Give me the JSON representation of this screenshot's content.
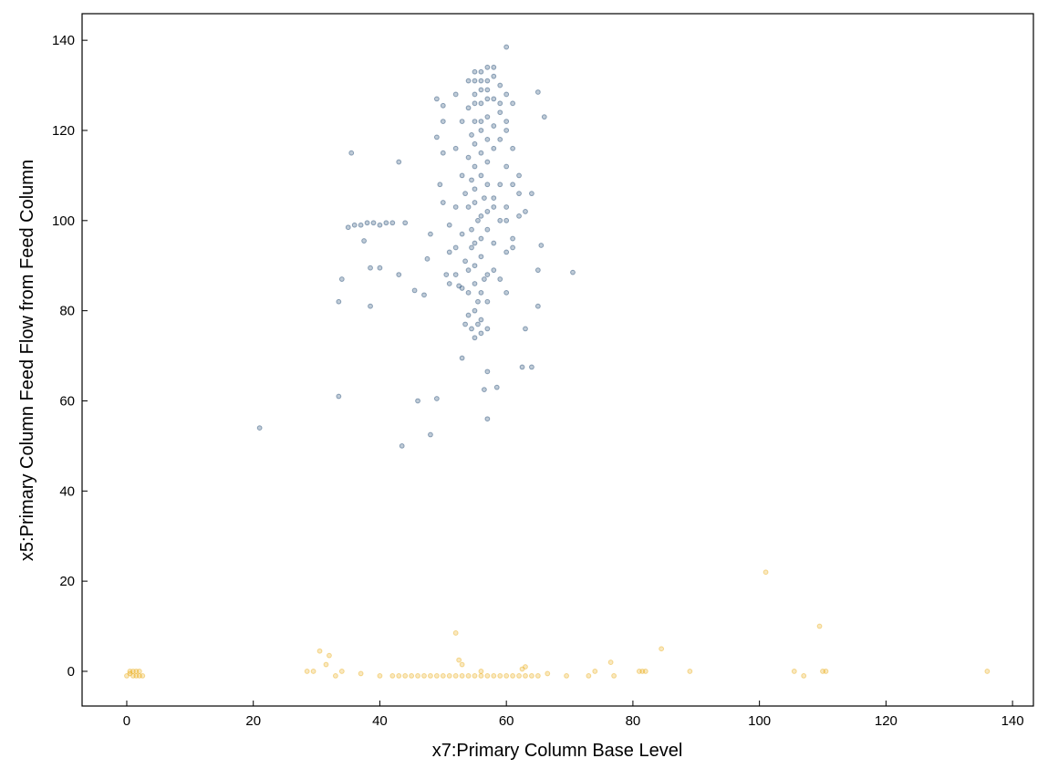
{
  "chart_data": {
    "type": "scatter",
    "xlabel": "x7:Primary Column Base Level",
    "ylabel": "x5:Primary Column Feed Flow from Feed Column",
    "xlim": [
      -7.06,
      143.3
    ],
    "ylim": [
      -7.7,
      145.9
    ],
    "xticks": [
      0,
      20,
      40,
      60,
      80,
      100,
      120,
      140
    ],
    "yticks": [
      0,
      20,
      40,
      60,
      80,
      100,
      120,
      140
    ],
    "alpha": 0.25,
    "series": [
      {
        "color": "#002f5f",
        "x": [
          21,
          33.5,
          43.5,
          48,
          46,
          49,
          57,
          58.5,
          56.5,
          57,
          53,
          62.5,
          64,
          63,
          33.5,
          34,
          38.5,
          38.5,
          40,
          43,
          45.5,
          47,
          65,
          65,
          70.5,
          35,
          36,
          37,
          37.5,
          38,
          39,
          40,
          41,
          42,
          44,
          43,
          35.5,
          50,
          49,
          50,
          49,
          50,
          66,
          65,
          65.5,
          64,
          60,
          49.5,
          50,
          48,
          47.5,
          51,
          50.5,
          55,
          56,
          54.5,
          55.5,
          56,
          54,
          55,
          55.5,
          54,
          53,
          55,
          56.5,
          52,
          54,
          57,
          55,
          53.5,
          56,
          54.5,
          55,
          56,
          53,
          54.5,
          55.5,
          56,
          57,
          54,
          55,
          56.5,
          53.5,
          55,
          57,
          54.5,
          56,
          55,
          57,
          54,
          56,
          58,
          55,
          57,
          54.5,
          56,
          58,
          55,
          57,
          59,
          54,
          56,
          58,
          55,
          57,
          59,
          56,
          58,
          55,
          57,
          60,
          61,
          60,
          59,
          60,
          61,
          62,
          60,
          59,
          61,
          58,
          60,
          58,
          59,
          52,
          51,
          52,
          53,
          52,
          53,
          52,
          54,
          58,
          56,
          59,
          60,
          61,
          62,
          60,
          62,
          63,
          61,
          60,
          57,
          56,
          52.5,
          51,
          57,
          53.5,
          58,
          59,
          57,
          58,
          56,
          55,
          57,
          56,
          55,
          57
        ],
        "y": [
          54,
          61,
          50,
          52.5,
          60,
          60.5,
          56,
          63,
          62.5,
          66.5,
          69.5,
          67.5,
          67.5,
          76,
          82,
          87,
          81,
          89.5,
          89.5,
          88,
          84.5,
          83.5,
          81,
          89,
          88.5,
          98.5,
          99,
          99,
          95.5,
          99.5,
          99.5,
          99,
          99.5,
          99.5,
          99.5,
          113,
          115,
          115,
          118.5,
          122,
          127,
          125.5,
          123,
          128.5,
          94.5,
          106,
          138.5,
          108,
          104,
          97,
          91.5,
          93,
          88,
          74,
          75,
          76,
          77,
          78,
          79,
          80,
          82,
          84,
          85,
          86,
          87,
          88,
          89,
          88,
          90,
          91,
          92,
          94,
          95,
          96,
          97,
          98,
          100,
          101,
          102,
          103,
          104,
          105,
          106,
          107,
          108,
          109,
          110,
          112,
          113,
          114,
          115,
          116,
          117,
          118,
          119,
          120,
          121,
          122,
          123,
          124,
          125,
          126,
          127,
          128,
          129,
          130,
          131,
          132,
          133,
          134,
          128,
          126,
          122,
          118,
          112,
          108,
          106,
          103,
          100,
          96,
          95,
          93,
          89,
          87,
          94,
          99,
          103,
          110,
          116,
          122,
          128,
          131,
          134,
          133,
          126,
          120,
          116,
          110,
          100,
          101,
          102,
          94,
          84,
          82,
          84,
          85.5,
          86,
          76,
          77,
          105,
          108,
          98,
          103,
          122,
          126,
          127,
          129,
          131,
          131
        ]
      },
      {
        "color": "#e8a400",
        "x": [
          0,
          0.5,
          1,
          1.5,
          2,
          2,
          1,
          0.5,
          1.5,
          2.5,
          42,
          43,
          44,
          45,
          46,
          47,
          48,
          49,
          50,
          51,
          52,
          53,
          54,
          55,
          56,
          57,
          58,
          59,
          60,
          61,
          62,
          63,
          64,
          65,
          28.5,
          29.5,
          30.5,
          31.5,
          32,
          33,
          34,
          37,
          40,
          52,
          52.5,
          53,
          56,
          62.5,
          63,
          66.5,
          69.5,
          73,
          74,
          76.5,
          77,
          81,
          81.5,
          82,
          84.5,
          89,
          101,
          105.5,
          107,
          109.5,
          110,
          110.5,
          136
        ],
        "y": [
          -1,
          -0.5,
          0,
          -1,
          0,
          -1,
          -1,
          0,
          0,
          -1,
          -1,
          -1,
          -1,
          -1,
          -1,
          -1,
          -1,
          -1,
          -1,
          -1,
          -1,
          -1,
          -1,
          -1,
          -1,
          -1,
          -1,
          -1,
          -1,
          -1,
          -1,
          -1,
          -1,
          -1,
          0,
          0,
          4.5,
          1.5,
          3.5,
          -1,
          0,
          -0.5,
          -1,
          8.5,
          2.5,
          1.5,
          0,
          0.5,
          1,
          -0.5,
          -1,
          -1,
          0,
          2,
          -1,
          0,
          0,
          0,
          5,
          0,
          22,
          0,
          -1,
          10,
          0,
          0,
          0
        ]
      }
    ]
  }
}
